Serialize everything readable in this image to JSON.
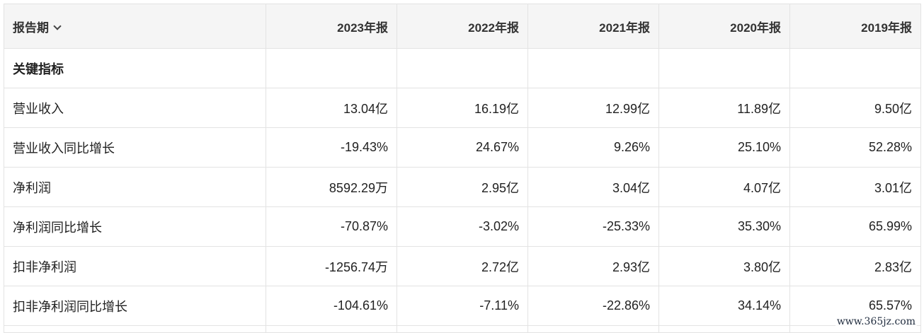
{
  "table": {
    "header": {
      "period_label": "报告期",
      "years": [
        "2023年报",
        "2022年报",
        "2021年报",
        "2020年报",
        "2019年报"
      ]
    },
    "section_label": "关键指标",
    "rows": [
      {
        "label": "营业收入",
        "values": [
          "13.04亿",
          "16.19亿",
          "12.99亿",
          "11.89亿",
          "9.50亿"
        ]
      },
      {
        "label": "营业收入同比增长",
        "values": [
          "-19.43%",
          "24.67%",
          "9.26%",
          "25.10%",
          "52.28%"
        ]
      },
      {
        "label": "净利润",
        "values": [
          "8592.29万",
          "2.95亿",
          "3.04亿",
          "4.07亿",
          "3.01亿"
        ]
      },
      {
        "label": "净利润同比增长",
        "values": [
          "-70.87%",
          "-3.02%",
          "-25.33%",
          "35.30%",
          "65.99%"
        ]
      },
      {
        "label": "扣非净利润",
        "values": [
          "-1256.74万",
          "2.72亿",
          "2.93亿",
          "3.80亿",
          "2.83亿"
        ]
      },
      {
        "label": "扣非净利润同比增长",
        "values": [
          "-104.61%",
          "-7.11%",
          "-22.86%",
          "34.14%",
          "65.57%"
        ]
      }
    ]
  },
  "watermark": "www.365jz.com",
  "icons": {
    "period_dropdown": "chevron-down-icon"
  }
}
